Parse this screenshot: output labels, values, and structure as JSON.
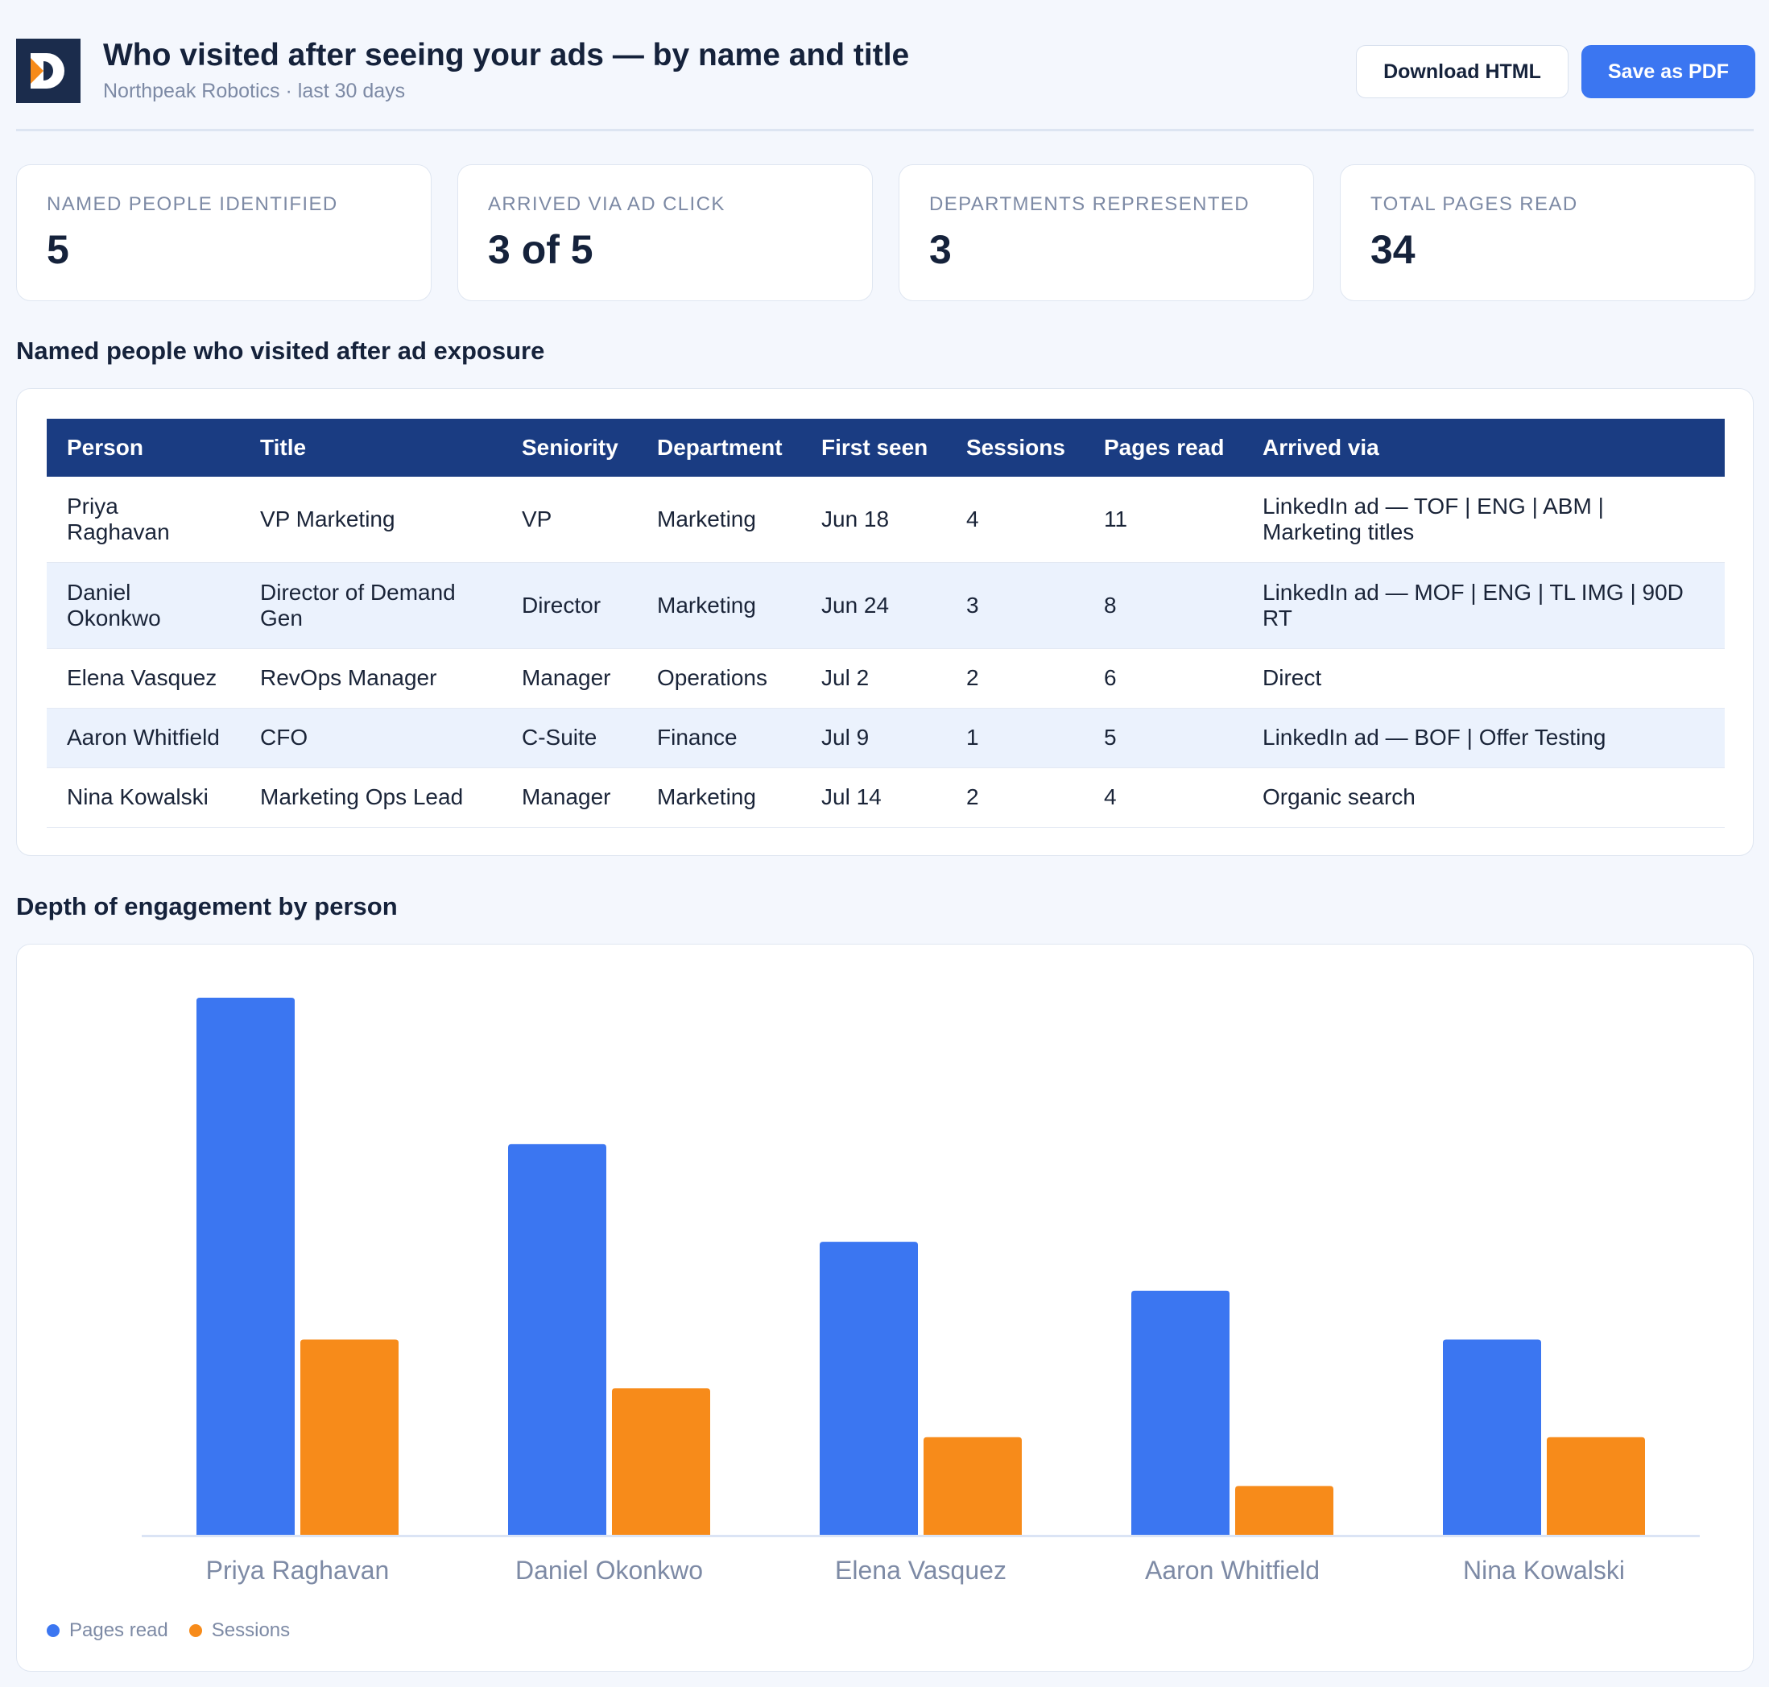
{
  "header": {
    "title": "Who visited after seeing your ads — by name and title",
    "subtitle": "Northpeak Robotics · last 30 days",
    "download_label": "Download HTML",
    "pdf_label": "Save as PDF"
  },
  "kpis": [
    {
      "label": "NAMED PEOPLE IDENTIFIED",
      "value": "5"
    },
    {
      "label": "ARRIVED VIA AD CLICK",
      "value": "3 of 5"
    },
    {
      "label": "DEPARTMENTS REPRESENTED",
      "value": "3"
    },
    {
      "label": "TOTAL PAGES READ",
      "value": "34"
    }
  ],
  "table_section": {
    "title": "Named people who visited after ad exposure",
    "columns": [
      "Person",
      "Title",
      "Seniority",
      "Department",
      "First seen",
      "Sessions",
      "Pages read",
      "Arrived via"
    ],
    "rows": [
      [
        "Priya Raghavan",
        "VP Marketing",
        "VP",
        "Marketing",
        "Jun 18",
        "4",
        "11",
        "LinkedIn ad — TOF | ENG | ABM | Marketing titles"
      ],
      [
        "Daniel Okonkwo",
        "Director of Demand Gen",
        "Director",
        "Marketing",
        "Jun 24",
        "3",
        "8",
        "LinkedIn ad — MOF | ENG | TL IMG | 90D RT"
      ],
      [
        "Elena Vasquez",
        "RevOps Manager",
        "Manager",
        "Operations",
        "Jul 2",
        "2",
        "6",
        "Direct"
      ],
      [
        "Aaron Whitfield",
        "CFO",
        "C-Suite",
        "Finance",
        "Jul 9",
        "1",
        "5",
        "LinkedIn ad — BOF | Offer Testing"
      ],
      [
        "Nina Kowalski",
        "Marketing Ops Lead",
        "Manager",
        "Marketing",
        "Jul 14",
        "2",
        "4",
        "Organic search"
      ]
    ]
  },
  "chart_section": {
    "title": "Depth of engagement by person"
  },
  "chart_data": {
    "type": "bar",
    "categories": [
      "Priya Raghavan",
      "Daniel Okonkwo",
      "Elena Vasquez",
      "Aaron Whitfield",
      "Nina Kowalski"
    ],
    "series": [
      {
        "name": "Pages read",
        "values": [
          11,
          8,
          6,
          5,
          4
        ],
        "color": "#3b76f1"
      },
      {
        "name": "Sessions",
        "values": [
          4,
          3,
          2,
          1,
          2
        ],
        "color": "#f78b1a"
      }
    ],
    "ylim": [
      0,
      11
    ],
    "grid": false,
    "legend": "bottom-left"
  },
  "colors": {
    "accent": "#3b76f1",
    "header_row": "#1a3c82",
    "sessions": "#f78b1a",
    "logo_bg": "#1b2c4c"
  }
}
